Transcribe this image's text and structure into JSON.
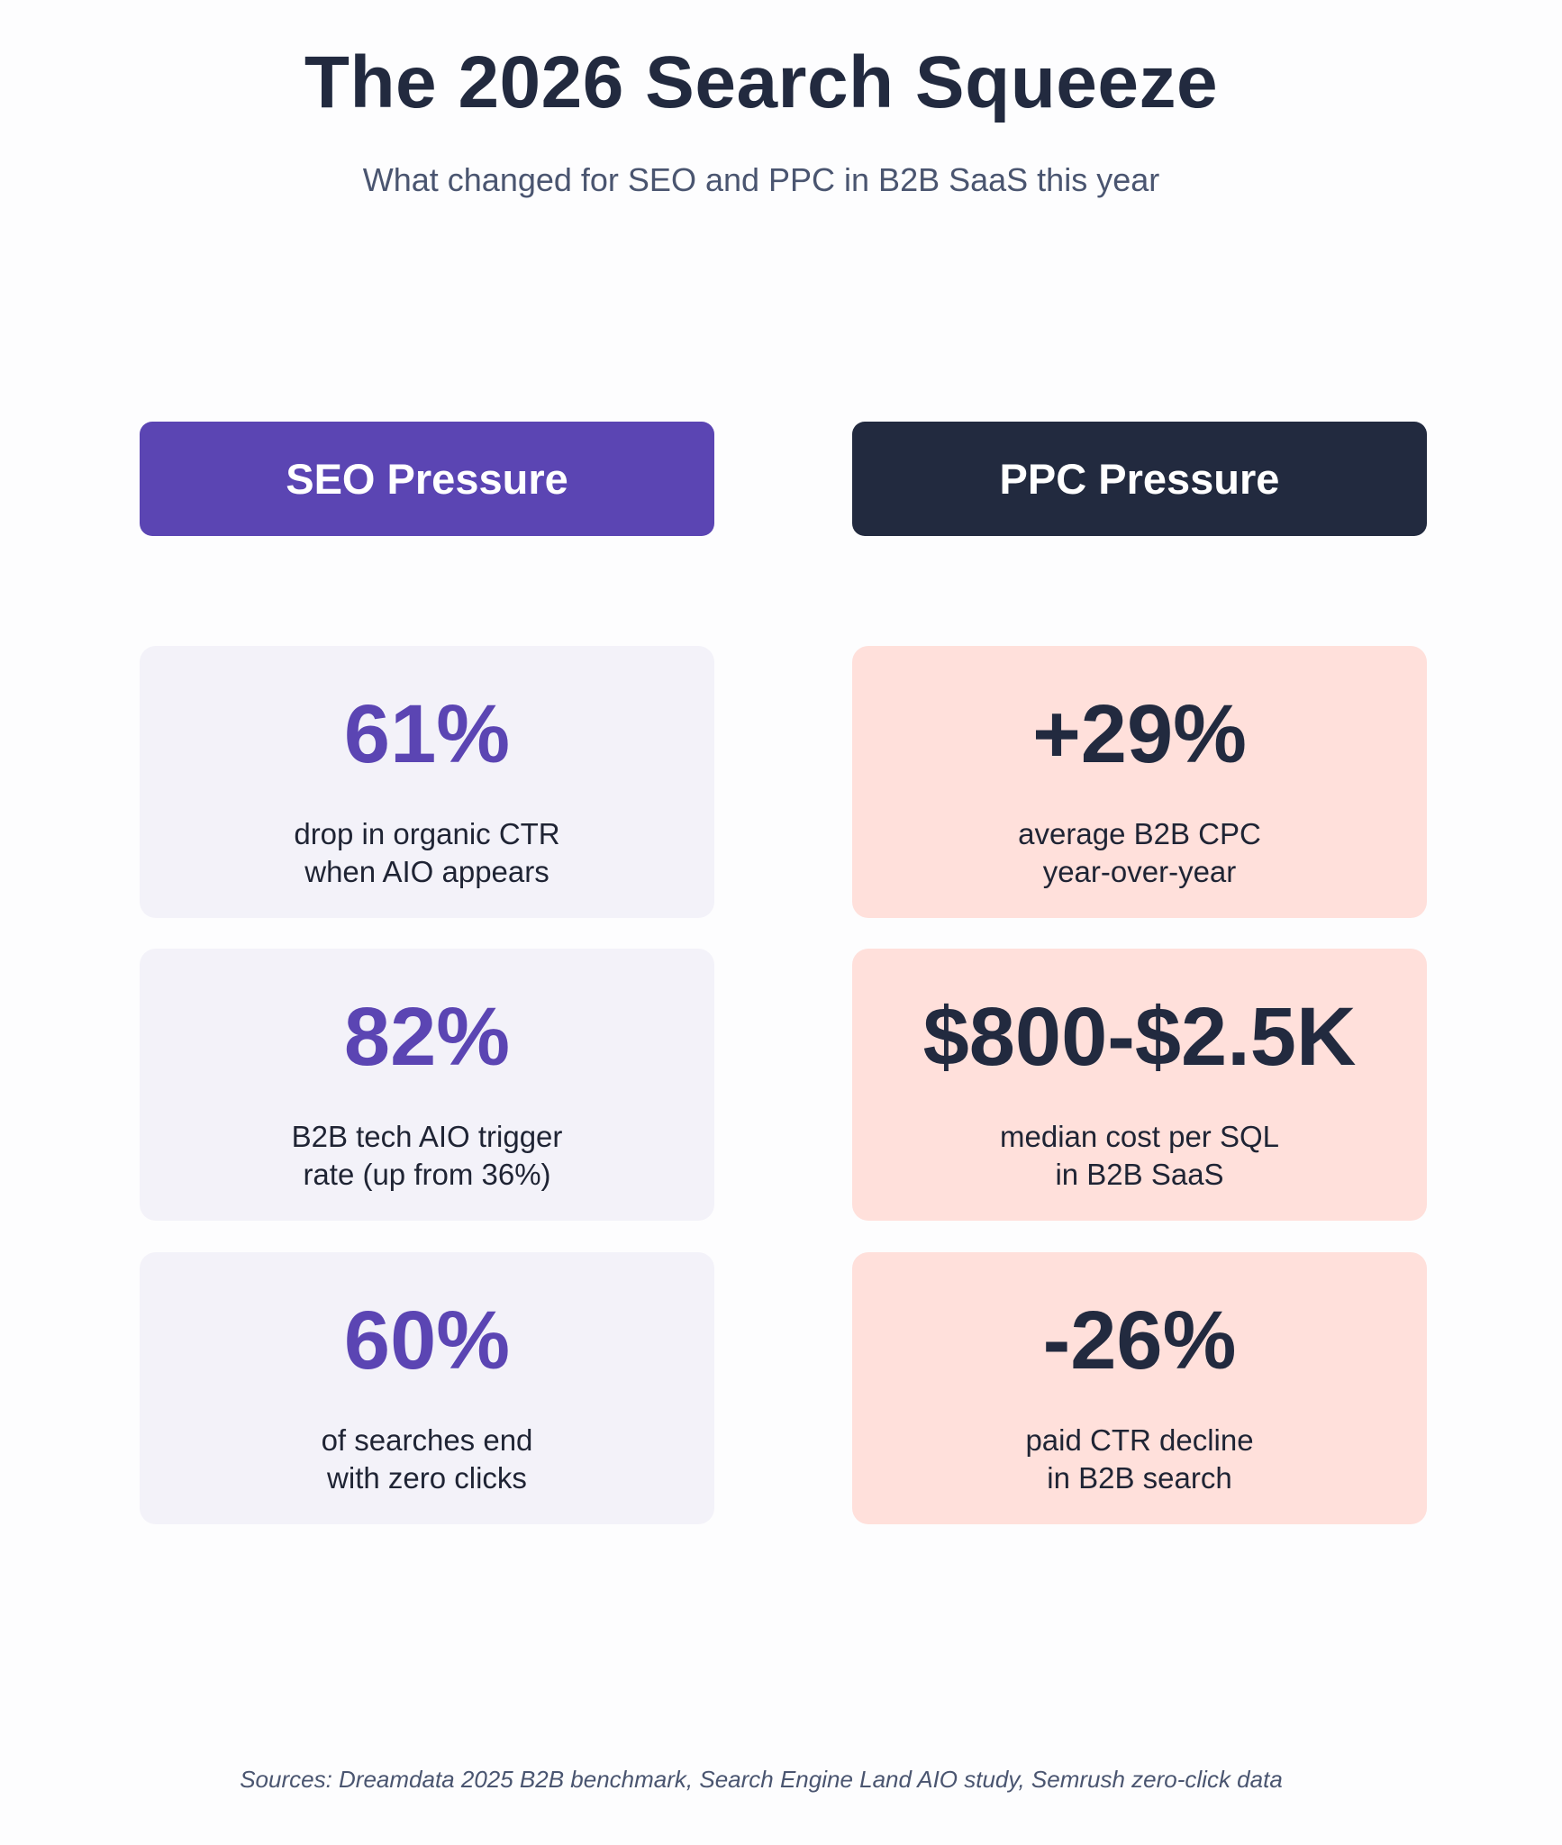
{
  "header": {
    "title": "The 2026 Search Squeeze",
    "subtitle": "What changed for SEO and PPC in B2B SaaS this year"
  },
  "columns": {
    "seo": {
      "label": "SEO Pressure",
      "color": "#5b45b3",
      "cards": [
        {
          "stat": "61%",
          "line1": "drop in organic CTR",
          "line2": "when AIO appears"
        },
        {
          "stat": "82%",
          "line1": "B2B tech AIO trigger",
          "line2": "rate (up from 36%)"
        },
        {
          "stat": "60%",
          "line1": "of searches end",
          "line2": "with zero clicks"
        }
      ]
    },
    "ppc": {
      "label": "PPC Pressure",
      "color": "#222a3f",
      "cards": [
        {
          "stat": "+29%",
          "line1": "average B2B CPC",
          "line2": "year-over-year"
        },
        {
          "stat": "$800-$2.5K",
          "line1": "median cost per SQL",
          "line2": "in B2B SaaS"
        },
        {
          "stat": "-26%",
          "line1": "paid CTR decline",
          "line2": "in B2B search"
        }
      ]
    }
  },
  "footer": {
    "sources": "Sources: Dreamdata 2025 B2B benchmark, Search Engine Land AIO study, Semrush zero-click data"
  }
}
